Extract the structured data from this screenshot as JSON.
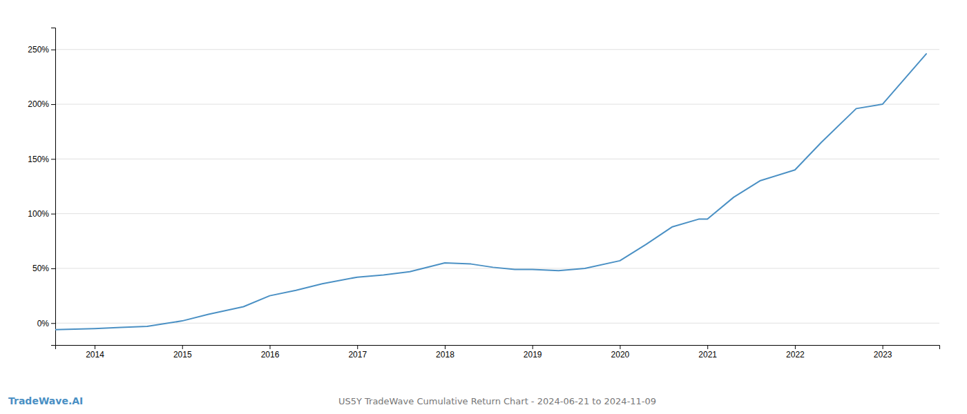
{
  "chart_data": {
    "type": "line",
    "title": "US5Y TradeWave Cumulative Return Chart - 2024-06-21 to 2024-11-09",
    "annotations": [
      "TradeWave.AI"
    ],
    "color": "#4a90c4",
    "x": [
      2013.55,
      2014.0,
      2014.3,
      2014.6,
      2015.0,
      2015.3,
      2015.7,
      2016.0,
      2016.3,
      2016.6,
      2017.0,
      2017.3,
      2017.6,
      2018.0,
      2018.3,
      2018.55,
      2018.8,
      2019.0,
      2019.3,
      2019.6,
      2020.0,
      2020.3,
      2020.6,
      2020.9,
      2021.0,
      2021.3,
      2021.6,
      2022.0,
      2022.3,
      2022.7,
      2023.0,
      2023.5
    ],
    "values": [
      -6,
      -5,
      -4,
      -3,
      2,
      8,
      15,
      25,
      30,
      36,
      42,
      44,
      47,
      55,
      54,
      51,
      49,
      49,
      48,
      50,
      57,
      72,
      88,
      95,
      95,
      115,
      130,
      140,
      165,
      196,
      200,
      246
    ],
    "xlim": [
      2013.55,
      2023.65
    ],
    "ylim": [
      -20,
      270
    ],
    "xticks": [
      2014,
      2015,
      2016,
      2017,
      2018,
      2019,
      2020,
      2021,
      2022,
      2023
    ],
    "yticks": [
      {
        "value": 0,
        "label": "0%"
      },
      {
        "value": 50,
        "label": "50%"
      },
      {
        "value": 100,
        "label": "100%"
      },
      {
        "value": 150,
        "label": "150%"
      },
      {
        "value": 200,
        "label": "200%"
      },
      {
        "value": 250,
        "label": "250%"
      }
    ],
    "grid": true
  }
}
